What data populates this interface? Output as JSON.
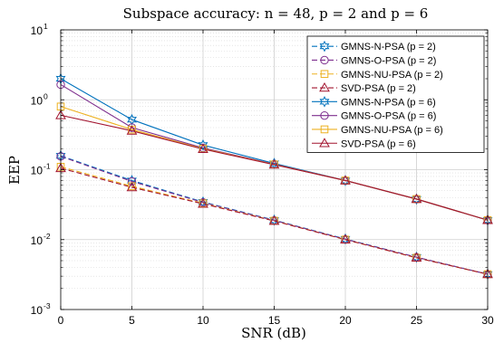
{
  "chart_data": {
    "type": "line",
    "title": "Subspace accuracy: n = 48, p = 2 and p = 6",
    "xlabel": "SNR (dB)",
    "ylabel": "EEP",
    "xlim": [
      0,
      30
    ],
    "ylim": [
      0.001,
      10
    ],
    "yscale": "log",
    "grid": true,
    "legend_position": "top-right",
    "x": [
      0,
      5,
      10,
      15,
      20,
      25,
      30
    ],
    "xticks": [
      "0",
      "5",
      "10",
      "15",
      "20",
      "25",
      "30"
    ],
    "ytick_base": "10",
    "ytick_exponents": [
      "-3",
      "-2",
      "-1",
      "0",
      "1"
    ],
    "series": [
      {
        "name": "GMNS-N-PSA (p = 2)",
        "color": "#0072bd",
        "marker": "hexagram",
        "dash": true,
        "values": [
          0.158,
          0.07,
          0.0345,
          0.019,
          0.0102,
          0.0056,
          0.0032
        ]
      },
      {
        "name": "GMNS-O-PSA (p = 2)",
        "color": "#7e2f8e",
        "marker": "circle",
        "dash": true,
        "values": [
          0.155,
          0.068,
          0.034,
          0.0188,
          0.0101,
          0.0056,
          0.0032
        ]
      },
      {
        "name": "GMNS-NU-PSA (p = 2)",
        "color": "#edb120",
        "marker": "square",
        "dash": true,
        "values": [
          0.11,
          0.058,
          0.033,
          0.0186,
          0.01,
          0.0055,
          0.0032
        ]
      },
      {
        "name": "SVD-PSA (p = 2)",
        "color": "#a2142f",
        "marker": "triangle",
        "dash": true,
        "values": [
          0.105,
          0.056,
          0.0325,
          0.0185,
          0.01,
          0.0055,
          0.0032
        ]
      },
      {
        "name": "GMNS-N-PSA (p = 6)",
        "color": "#0072bd",
        "marker": "hexagram",
        "dash": false,
        "values": [
          2.0,
          0.52,
          0.225,
          0.123,
          0.07,
          0.038,
          0.019
        ]
      },
      {
        "name": "GMNS-O-PSA (p = 6)",
        "color": "#7e2f8e",
        "marker": "circle",
        "dash": false,
        "values": [
          1.65,
          0.4,
          0.205,
          0.12,
          0.07,
          0.038,
          0.019
        ]
      },
      {
        "name": "GMNS-NU-PSA (p = 6)",
        "color": "#edb120",
        "marker": "square",
        "dash": false,
        "values": [
          0.8,
          0.375,
          0.2,
          0.119,
          0.07,
          0.038,
          0.019
        ]
      },
      {
        "name": "SVD-PSA (p = 6)",
        "color": "#a2142f",
        "marker": "triangle",
        "dash": false,
        "values": [
          0.6,
          0.36,
          0.197,
          0.118,
          0.07,
          0.038,
          0.019
        ]
      }
    ]
  }
}
